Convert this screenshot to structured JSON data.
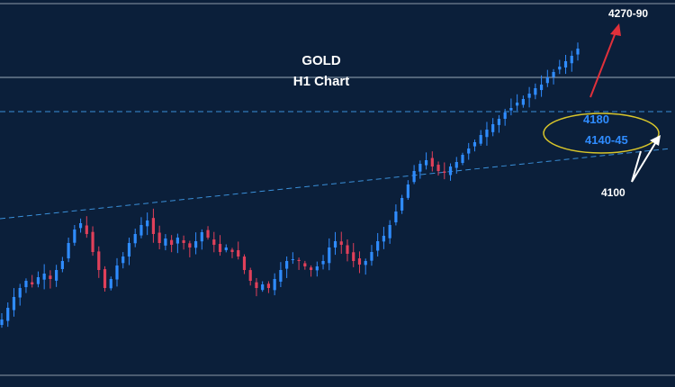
{
  "chart_data": {
    "type": "candlestick",
    "title": "GOLD",
    "subtitle": "H1 Chart",
    "ylim": [
      3920,
      4320
    ],
    "colors": {
      "background": "#0b1f3a",
      "bull": "#2f8cff",
      "bear": "#e0405a",
      "trendline": "#3a8fd8",
      "level_line": "#9aa8b8",
      "ellipse": "#d8c52a",
      "arrow_up": "#e0303a",
      "arrow_zigzag": "#ffffff"
    },
    "closes": [
      3975,
      3988,
      4000,
      4010,
      4018,
      4014,
      4022,
      4026,
      4020,
      4030,
      4040,
      4060,
      4075,
      4082,
      4070,
      4050,
      4030,
      4010,
      4020,
      4035,
      4045,
      4060,
      4070,
      4080,
      4085,
      4070,
      4060,
      4065,
      4058,
      4066,
      4060,
      4055,
      4062,
      4072,
      4066,
      4058,
      4050,
      4055,
      4050,
      4045,
      4030,
      4018,
      4010,
      4014,
      4010,
      4020,
      4030,
      4040,
      4042,
      4040,
      4034,
      4030,
      4034,
      4040,
      4055,
      4062,
      4058,
      4048,
      4040,
      4036,
      4040,
      4050,
      4062,
      4068,
      4080,
      4095,
      4110,
      4125,
      4140,
      4148,
      4152,
      4145,
      4140,
      4138,
      4145,
      4150,
      4158,
      4165,
      4172,
      4180,
      4186,
      4192,
      4198,
      4205,
      4210,
      4216,
      4220,
      4226,
      4232,
      4236,
      4244,
      4250,
      4256,
      4262,
      4268,
      4276
    ],
    "levels": [
      {
        "label": "4180",
        "value": 4180,
        "style": "dashed"
      },
      {
        "label": "4270-90",
        "value": 4280,
        "style": "solid"
      }
    ],
    "annotations": [
      {
        "label": "4270-90",
        "role": "target-up"
      },
      {
        "label": "4180",
        "role": "zone"
      },
      {
        "label": "4140-45",
        "role": "zone"
      },
      {
        "label": "4100",
        "role": "pullback"
      }
    ]
  }
}
